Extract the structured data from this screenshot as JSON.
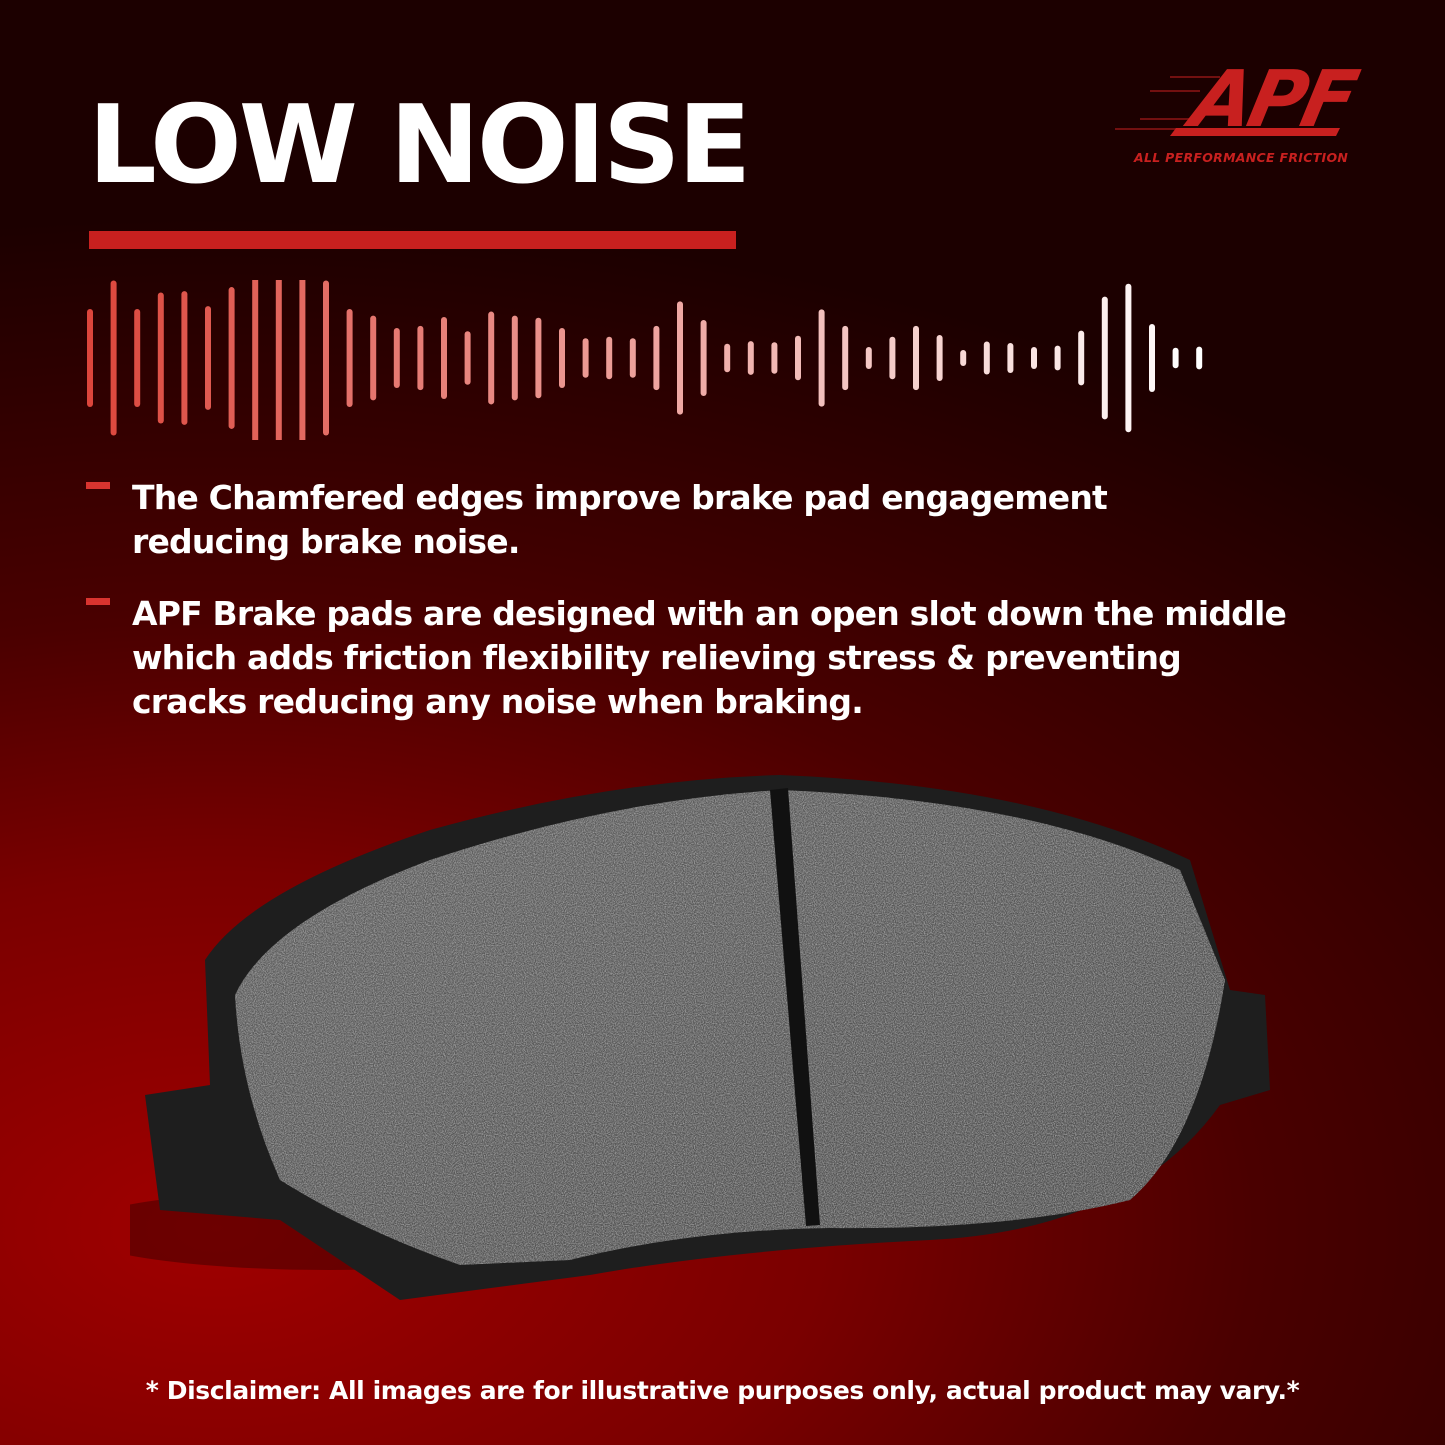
{
  "heading": "LOW NOISE",
  "brand": {
    "logo_text": "APF",
    "tagline": "ALL PERFORMANCE FRICTION",
    "accent_color": "#c8201f"
  },
  "bullets": [
    {
      "text": "The Chamfered edges improve brake pad engagement\nreducing brake noise."
    },
    {
      "text": "APF Brake pads are designed with an open slot down the middle\nwhich adds friction flexibility relieving stress & preventing\n cracks reducing any noise when braking."
    }
  ],
  "icons": {
    "waveform": "sound-wave-icon",
    "bullet": "dash-icon"
  },
  "product_image": "brake-pad",
  "disclaimer": "* Disclaimer: All images are for illustrative purposes only, actual product may vary.*"
}
